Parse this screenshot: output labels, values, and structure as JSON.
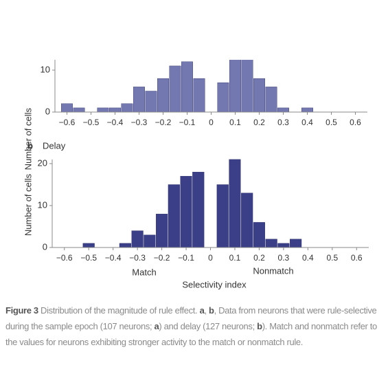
{
  "chart_data": [
    {
      "type": "histogram",
      "color": "#7478b0",
      "y_label": "Number of cells",
      "bins": [
        -0.625,
        -0.575,
        -0.525,
        -0.475,
        -0.425,
        -0.375,
        -0.325,
        -0.275,
        -0.225,
        -0.175,
        -0.125,
        -0.075,
        -0.025,
        0.025,
        0.075,
        0.125,
        0.175,
        0.225,
        0.275,
        0.325,
        0.375,
        0.425,
        0.475,
        0.525
      ],
      "values": [
        2,
        1,
        0,
        1,
        1,
        2,
        6,
        5,
        8,
        11,
        12,
        8,
        0,
        7,
        14,
        13,
        8,
        6,
        1,
        0,
        1,
        0,
        0
      ],
      "xlim": [
        -0.65,
        0.65
      ],
      "xticks": [
        {
          "value": -0.6,
          "label": "−0.6"
        },
        {
          "value": -0.5,
          "label": "−0.5"
        },
        {
          "value": -0.4,
          "label": "−0.4"
        },
        {
          "value": -0.3,
          "label": "−0.3"
        },
        {
          "value": -0.2,
          "label": "−0.2"
        },
        {
          "value": -0.1,
          "label": "−0.1"
        },
        0,
        0.1,
        0.2,
        0.3,
        0.4,
        0.5,
        0.6
      ],
      "ylim": [
        0,
        20
      ],
      "yticks": [
        0,
        10,
        20
      ]
    },
    {
      "type": "histogram",
      "color": "#3b3f88",
      "panel_label": "b",
      "title": "Delay",
      "y_label": "Number of cells",
      "x_label": "Selectivity index",
      "annotations": [
        "Match",
        "Nonmatch"
      ],
      "bins": [
        -0.625,
        -0.575,
        -0.525,
        -0.475,
        -0.425,
        -0.375,
        -0.325,
        -0.275,
        -0.225,
        -0.175,
        -0.125,
        -0.075,
        -0.025,
        0.025,
        0.075,
        0.125,
        0.175,
        0.225,
        0.275,
        0.325,
        0.375
      ],
      "values": [
        0,
        0,
        1,
        0,
        0,
        1,
        4,
        3,
        8,
        15,
        17,
        18,
        0,
        15,
        21,
        13,
        6,
        2,
        1,
        2
      ],
      "xlim": [
        -0.65,
        0.65
      ],
      "xticks": [
        {
          "value": -0.6,
          "label": "−0.6"
        },
        {
          "value": -0.5,
          "label": "−0.5"
        },
        {
          "value": -0.4,
          "label": "−0.4"
        },
        {
          "value": -0.3,
          "label": "−0.3"
        },
        {
          "value": -0.2,
          "label": "−0.2"
        },
        {
          "value": -0.1,
          "label": "−0.1"
        },
        0,
        0.1,
        0.2,
        0.3,
        0.4,
        0.5,
        0.6
      ],
      "ylim": [
        0,
        21
      ],
      "yticks": [
        0,
        10,
        20
      ]
    }
  ],
  "caption": [
    {
      "text": "Figure 3",
      "bold": true
    },
    {
      "text": " Distribution of the magnitude of rule effect. "
    },
    {
      "text": "a",
      "bold": true
    },
    {
      "text": ", "
    },
    {
      "text": "b",
      "bold": true
    },
    {
      "text": ", Data from neurons that were rule-selective during the sample epoch (107 neurons; "
    },
    {
      "text": "a",
      "bold": true
    },
    {
      "text": ") and delay (127 neurons; "
    },
    {
      "text": "b",
      "bold": true
    },
    {
      "text": "). Match and nonmatch refer to the values for neurons exhibiting stronger activity to the match or nonmatch rule."
    }
  ]
}
